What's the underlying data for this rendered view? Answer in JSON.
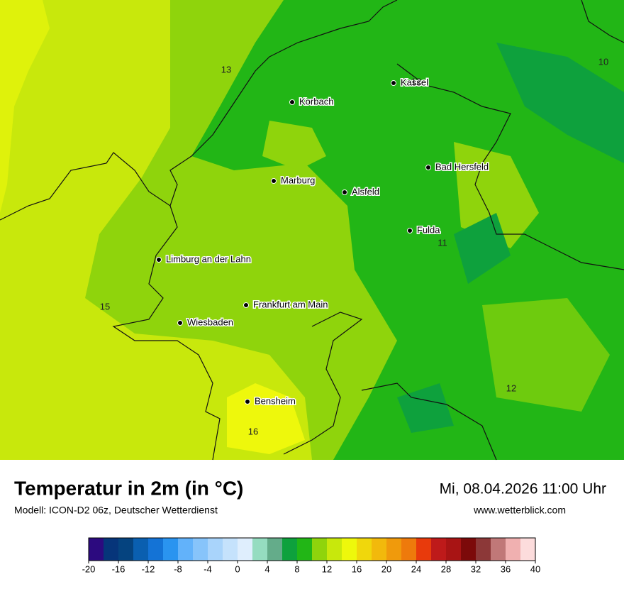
{
  "map": {
    "cities": [
      "Kassel",
      "Korbach",
      "Bad Hersfeld",
      "Marburg",
      "Alsfeld",
      "Fulda",
      "Limburg an der Lahn",
      "Frankfurt am Main",
      "Wiesbaden",
      "Bensheim"
    ],
    "contour_labels": [
      "13",
      "12",
      "10",
      "11",
      "15",
      "12",
      "16"
    ]
  },
  "footer": {
    "title": "Temperatur in 2m (in °C)",
    "subtitle": "Modell: ICON-D2 06z, Deutscher Wetterdienst",
    "datetime": "Mi, 08.04.2026 11:00 Uhr",
    "website": "www.wetterblick.com"
  },
  "colorbar": {
    "lim": [
      -20,
      40
    ],
    "ticks": [
      -20,
      -16,
      -12,
      -8,
      -4,
      0,
      4,
      8,
      12,
      16,
      20,
      24,
      28,
      32,
      36,
      40
    ],
    "colors": [
      "#2c0a7f",
      "#06357a",
      "#05437f",
      "#0a5fb0",
      "#1473d6",
      "#2a94f0",
      "#62b2fa",
      "#87c4fa",
      "#a9d4fb",
      "#c5e2fc",
      "#dfeefd",
      "#95dcc0",
      "#64ac8a",
      "#0ea13d",
      "#22b616",
      "#8fd40c",
      "#c8e80c",
      "#eef80c",
      "#f0d70c",
      "#f2b90c",
      "#f09a0c",
      "#ee7a0c",
      "#e83a0c",
      "#be1a1a",
      "#a81414",
      "#7c0a0a",
      "#8c3838",
      "#c07878",
      "#f0b0b0",
      "#fcdcdc"
    ]
  }
}
